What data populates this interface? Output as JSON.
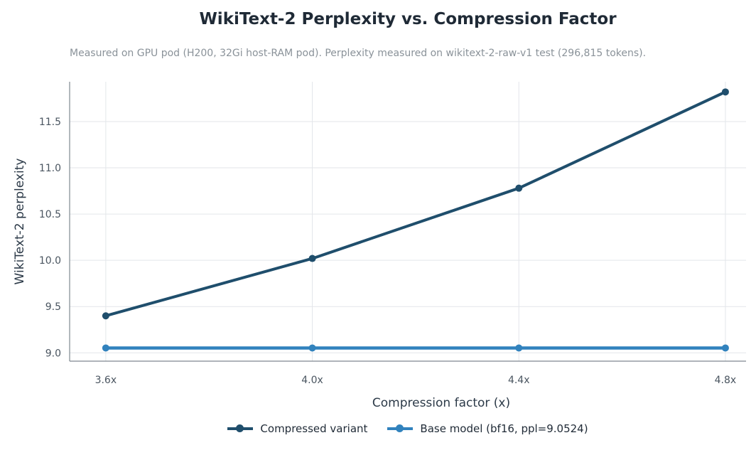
{
  "chart_data": {
    "type": "line",
    "title": "WikiText-2 Perplexity vs. Compression Factor",
    "subtitle": "Measured on GPU pod (H200, 32Gi host-RAM pod). Perplexity measured on wikitext-2-raw-v1 test (296,815 tokens).",
    "xlabel": "Compression factor (x)",
    "ylabel": "WikiText-2 perplexity",
    "categories": [
      "3.6x",
      "4.0x",
      "4.4x",
      "4.8x"
    ],
    "x": [
      3.6,
      4.0,
      4.4,
      4.8
    ],
    "xlim": [
      3.53,
      4.84
    ],
    "ylim": [
      8.91,
      11.93
    ],
    "yticks": [
      9.0,
      9.5,
      10.0,
      10.5,
      11.0,
      11.5
    ],
    "ytick_labels": [
      "9.0",
      "9.5",
      "10.0",
      "10.5",
      "11.0",
      "11.5"
    ],
    "grid": true,
    "legend_position": "bottom-center",
    "series": [
      {
        "name": "Compressed variant",
        "values": [
          9.4,
          10.02,
          10.78,
          11.82
        ],
        "color": "#1f4e6c"
      },
      {
        "name": "Base model (bf16, ppl=9.0524)",
        "values": [
          9.0524,
          9.0524,
          9.0524,
          9.0524
        ],
        "color": "#3182bd"
      }
    ]
  }
}
